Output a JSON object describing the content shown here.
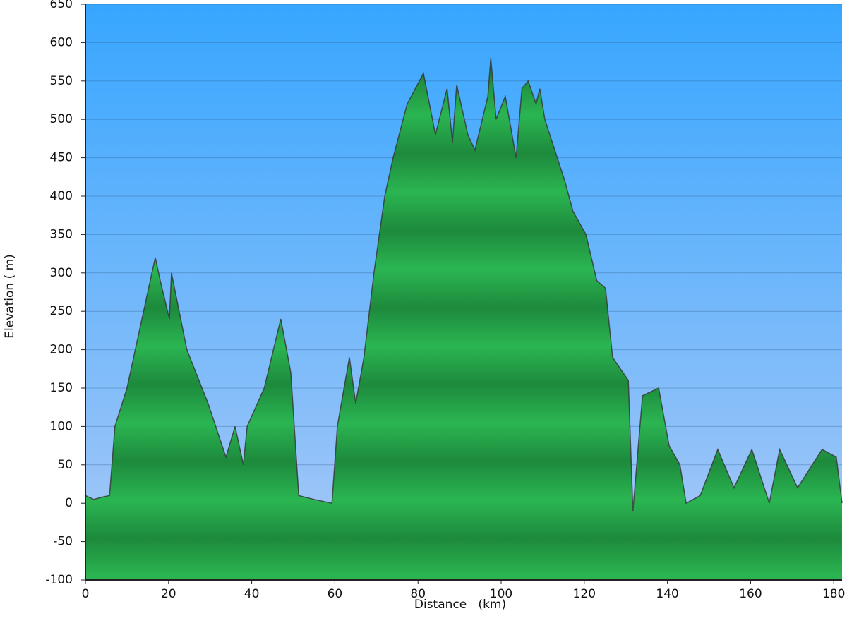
{
  "chart_data": {
    "type": "area",
    "x_label": "Distance   (km)",
    "y_label": "Elevation ( m)",
    "x": [
      0,
      2,
      4,
      5.8,
      7.1,
      10,
      16,
      16.8,
      18,
      20.2,
      20.7,
      24.4,
      29.5,
      33.8,
      36,
      38,
      38.9,
      43,
      47,
      49.4,
      51.3,
      55,
      59.3,
      60.6,
      63.5,
      65,
      67,
      69.4,
      72,
      74,
      77.4,
      81.3,
      84.2,
      87,
      88.3,
      89.3,
      92,
      93.7,
      96.8,
      97.5,
      98.8,
      101,
      103.6,
      105,
      106.5,
      108.4,
      109.3,
      110.5,
      112.9,
      115.3,
      117.3,
      120.4,
      123,
      125.1,
      126.8,
      130.6,
      131.7,
      134,
      137.9,
      140.4,
      143,
      144.5,
      147.9,
      152.1,
      156,
      160.3,
      164.5,
      167,
      171.3,
      177.2,
      180.6,
      182
    ],
    "values": [
      10,
      5,
      8,
      10,
      100,
      150,
      300,
      320,
      290,
      240,
      300,
      200,
      130,
      60,
      100,
      50,
      100,
      150,
      240,
      170,
      10,
      5,
      0,
      100,
      190,
      130,
      190,
      300,
      400,
      450,
      520,
      560,
      480,
      540,
      470,
      545,
      480,
      460,
      530,
      580,
      500,
      530,
      450,
      540,
      550,
      520,
      540,
      500,
      460,
      420,
      380,
      350,
      290,
      280,
      190,
      160,
      -10,
      140,
      150,
      75,
      50,
      0,
      10,
      70,
      20,
      70,
      0,
      70,
      20,
      70,
      60,
      0
    ],
    "color": "#23a447",
    "xlim": [
      0,
      182
    ],
    "ylim": [
      -100,
      650
    ],
    "xticks": [
      0,
      20,
      40,
      60,
      80,
      100,
      120,
      140,
      160,
      180
    ],
    "yticks": [
      -100,
      -50,
      0,
      50,
      100,
      150,
      200,
      250,
      300,
      350,
      400,
      450,
      500,
      550,
      600,
      650
    ],
    "grid": true
  }
}
